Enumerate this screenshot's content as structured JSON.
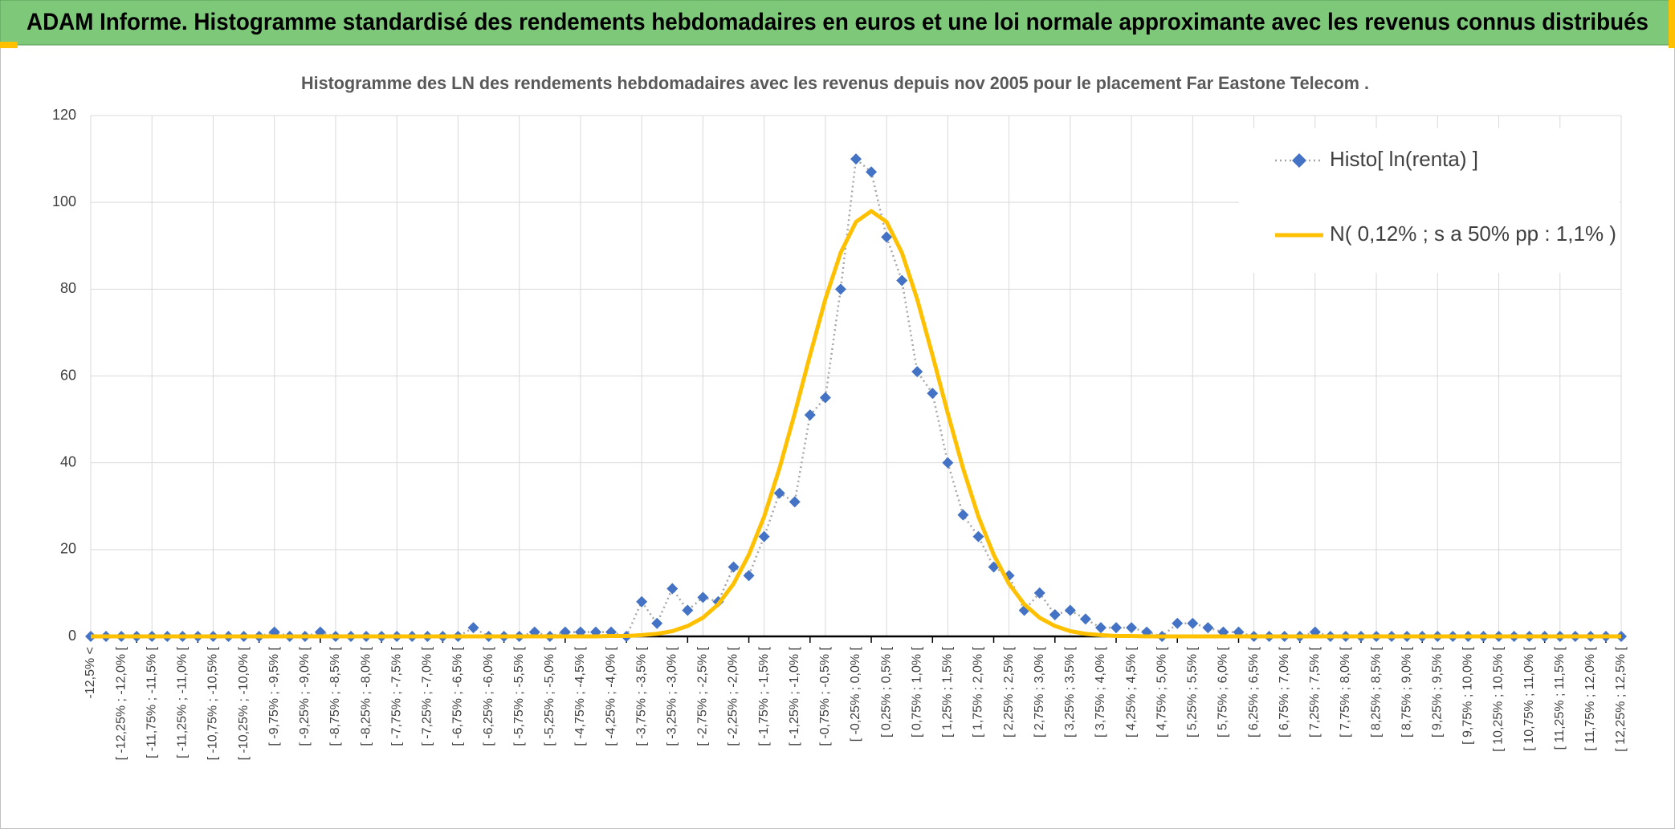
{
  "banner": "ADAM Informe. Histogramme standardisé des rendements hebdomadaires en euros et une loi normale approximante avec les revenus connus distribués",
  "chart_data": {
    "type": "line",
    "title": "Histogramme des LN des rendements hebdomadaires avec les revenus depuis nov 2005 pour le placement Far Eastone Telecom .",
    "categories": [
      "-12,5% <",
      null,
      "[ -12,25% ; -12,0% [",
      null,
      "[ -11,75% ; -11,5% [",
      null,
      "[ -11,25% ; -11,0% [",
      null,
      "[ -10,75% ; -10,5% [",
      null,
      "[ -10,25% ; -10,0% [",
      null,
      "[ -9,75% ; -9,5% [",
      null,
      "[ -9,25% ; -9,0% [",
      null,
      "[ -8,75% ; -8,5% [",
      null,
      "[ -8,25% ; -8,0% [",
      null,
      "[ -7,75% ; -7,5% [",
      null,
      "[ -7,25% ; -7,0% [",
      null,
      "[ -6,75% ; -6,5% [",
      null,
      "[ -6,25% ; -6,0% [",
      null,
      "[ -5,75% ; -5,5% [",
      null,
      "[ -5,25% ; -5,0% [",
      null,
      "[ -4,75% ; -4,5% [",
      null,
      "[ -4,25% ; -4,0% [",
      null,
      "[ -3,75% ; -3,5% [",
      null,
      "[ -3,25% ; -3,0% [",
      null,
      "[ -2,75% ; -2,5% [",
      null,
      "[ -2,25% ; -2,0% [",
      null,
      "[ -1,75% ; -1,5% [",
      null,
      "[ -1,25% ; -1,0% [",
      null,
      "[ -0,75% ; -0,5% [",
      null,
      "[ -0,25% ; 0,0% [",
      null,
      "[ 0,25% ; 0,5% [",
      null,
      "[ 0,75% ; 1,0% [",
      null,
      "[ 1,25% ; 1,5% [",
      null,
      "[ 1,75% ; 2,0% [",
      null,
      "[ 2,25% ; 2,5% [",
      null,
      "[ 2,75% ; 3,0% [",
      null,
      "[ 3,25% ; 3,5% [",
      null,
      "[ 3,75% ; 4,0% [",
      null,
      "[ 4,25% ; 4,5% [",
      null,
      "[ 4,75% ; 5,0% [",
      null,
      "[ 5,25% ; 5,5% [",
      null,
      "[ 5,75% ; 6,0% [",
      null,
      "[ 6,25% ; 6,5% [",
      null,
      "[ 6,75% ; 7,0% [",
      null,
      "[ 7,25% ; 7,5% [",
      null,
      "[ 7,75% ; 8,0% [",
      null,
      "[ 8,25% ; 8,5% [",
      null,
      "[ 8,75% ; 9,0% [",
      null,
      "[ 9,25% ; 9,5% [",
      null,
      "[ 9,75% ; 10,0% [",
      null,
      "[ 10,25% ; 10,5% [",
      null,
      "[ 10,75% ; 11,0% [",
      null,
      "[ 11,25% ; 11,5% [",
      null,
      "[ 11,75% ; 12,0% [",
      null,
      "[ 12,25% ; 12,5% ["
    ],
    "series": [
      {
        "name": "Histo[ ln(renta) ]",
        "color": "#4472c4",
        "marker": "diamond",
        "dash": "dotted",
        "line_color": "#a6a6a6",
        "values": [
          0,
          0,
          0,
          0,
          0,
          0,
          0,
          0,
          0,
          0,
          0,
          0,
          1,
          0,
          0,
          1,
          0,
          0,
          0,
          0,
          0,
          0,
          0,
          0,
          0,
          2,
          0,
          0,
          0,
          1,
          0,
          1,
          1,
          1,
          1,
          0,
          8,
          3,
          11,
          6,
          9,
          8,
          16,
          14,
          23,
          33,
          31,
          51,
          55,
          80,
          110,
          107,
          92,
          82,
          61,
          56,
          40,
          28,
          23,
          16,
          14,
          6,
          10,
          5,
          6,
          4,
          2,
          2,
          2,
          1,
          0,
          3,
          3,
          2,
          1,
          1,
          0,
          0,
          0,
          0,
          1,
          0,
          0,
          0,
          0,
          0,
          0,
          0,
          0,
          0,
          0,
          0,
          0,
          0,
          0,
          0,
          0,
          0,
          0,
          0,
          0
        ]
      },
      {
        "name": "N( 0,12% ; s a 50% pp : 1,1% )",
        "color": "#ffc000",
        "marker": "none",
        "dash": "solid",
        "values": [
          0,
          0,
          0,
          0,
          0,
          0,
          0,
          0,
          0,
          0,
          0,
          0,
          0,
          0,
          0,
          0,
          0,
          0,
          0,
          0,
          0,
          0,
          0,
          0,
          0,
          0,
          0,
          0,
          0,
          0,
          0,
          0,
          0,
          0,
          0.1,
          0.1,
          0.3,
          0.6,
          1.2,
          2.4,
          4.3,
          7.4,
          12.1,
          18.8,
          27.6,
          38.7,
          51.4,
          64.8,
          77.7,
          88.4,
          95.5,
          98,
          95.5,
          88.4,
          77.7,
          64.8,
          51.4,
          38.7,
          27.6,
          18.8,
          12.1,
          7.4,
          4.3,
          2.4,
          1.2,
          0.6,
          0.3,
          0.1,
          0.1,
          0,
          0,
          0,
          0,
          0,
          0,
          0,
          0,
          0,
          0,
          0,
          0,
          0,
          0,
          0,
          0,
          0,
          0,
          0,
          0,
          0,
          0,
          0,
          0,
          0,
          0,
          0,
          0,
          0,
          0,
          0,
          0
        ]
      }
    ],
    "ylim": [
      0,
      120
    ],
    "yticks": [
      0,
      20,
      40,
      60,
      80,
      100,
      120
    ],
    "grid": true,
    "legend": "top-right"
  }
}
